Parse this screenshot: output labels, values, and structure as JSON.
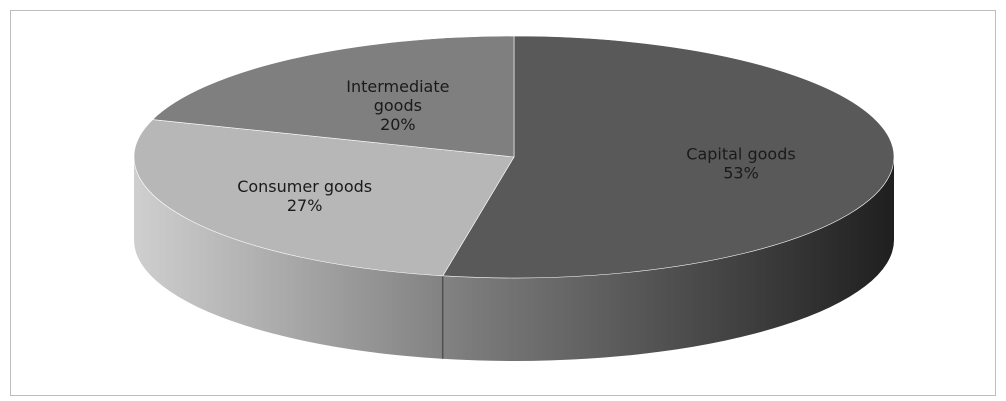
{
  "chart_data": {
    "type": "pie",
    "style": "3d",
    "title": "",
    "slices": [
      {
        "name": "Capital goods",
        "value": 53,
        "label": "53%",
        "color": "#595959",
        "side_color": "#2b2b2b"
      },
      {
        "name": "Consumer goods",
        "value": 27,
        "label": "27%",
        "color": "#b7b7b7",
        "side_color": "#8a8a8a"
      },
      {
        "name": "Intermediate goods",
        "value": 20,
        "label": "20%",
        "color": "#7f7f7f",
        "side_color": "#5e5e5e"
      }
    ]
  }
}
